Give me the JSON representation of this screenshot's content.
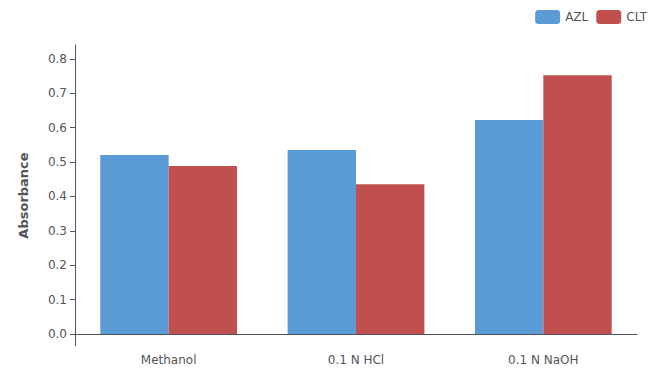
{
  "chart_data": {
    "type": "bar",
    "categories": [
      "Methanol",
      "0.1 N HCl",
      "0.1 N NaOH"
    ],
    "series": [
      {
        "name": "AZL",
        "color": "#5b9bd5",
        "values": [
          0.52,
          0.535,
          0.622
        ]
      },
      {
        "name": "CLT",
        "color": "#c0504d",
        "values": [
          0.488,
          0.435,
          0.752
        ]
      }
    ],
    "ylabel": "Absorbance",
    "ylim": [
      -0.035,
      0.84
    ],
    "yticks": [
      {
        "value": 0,
        "label": "0.0"
      },
      0.1,
      0.2,
      0.3,
      0.4,
      0.5,
      0.6,
      0.7,
      0.8
    ],
    "grid": false,
    "legend": "upper right"
  }
}
